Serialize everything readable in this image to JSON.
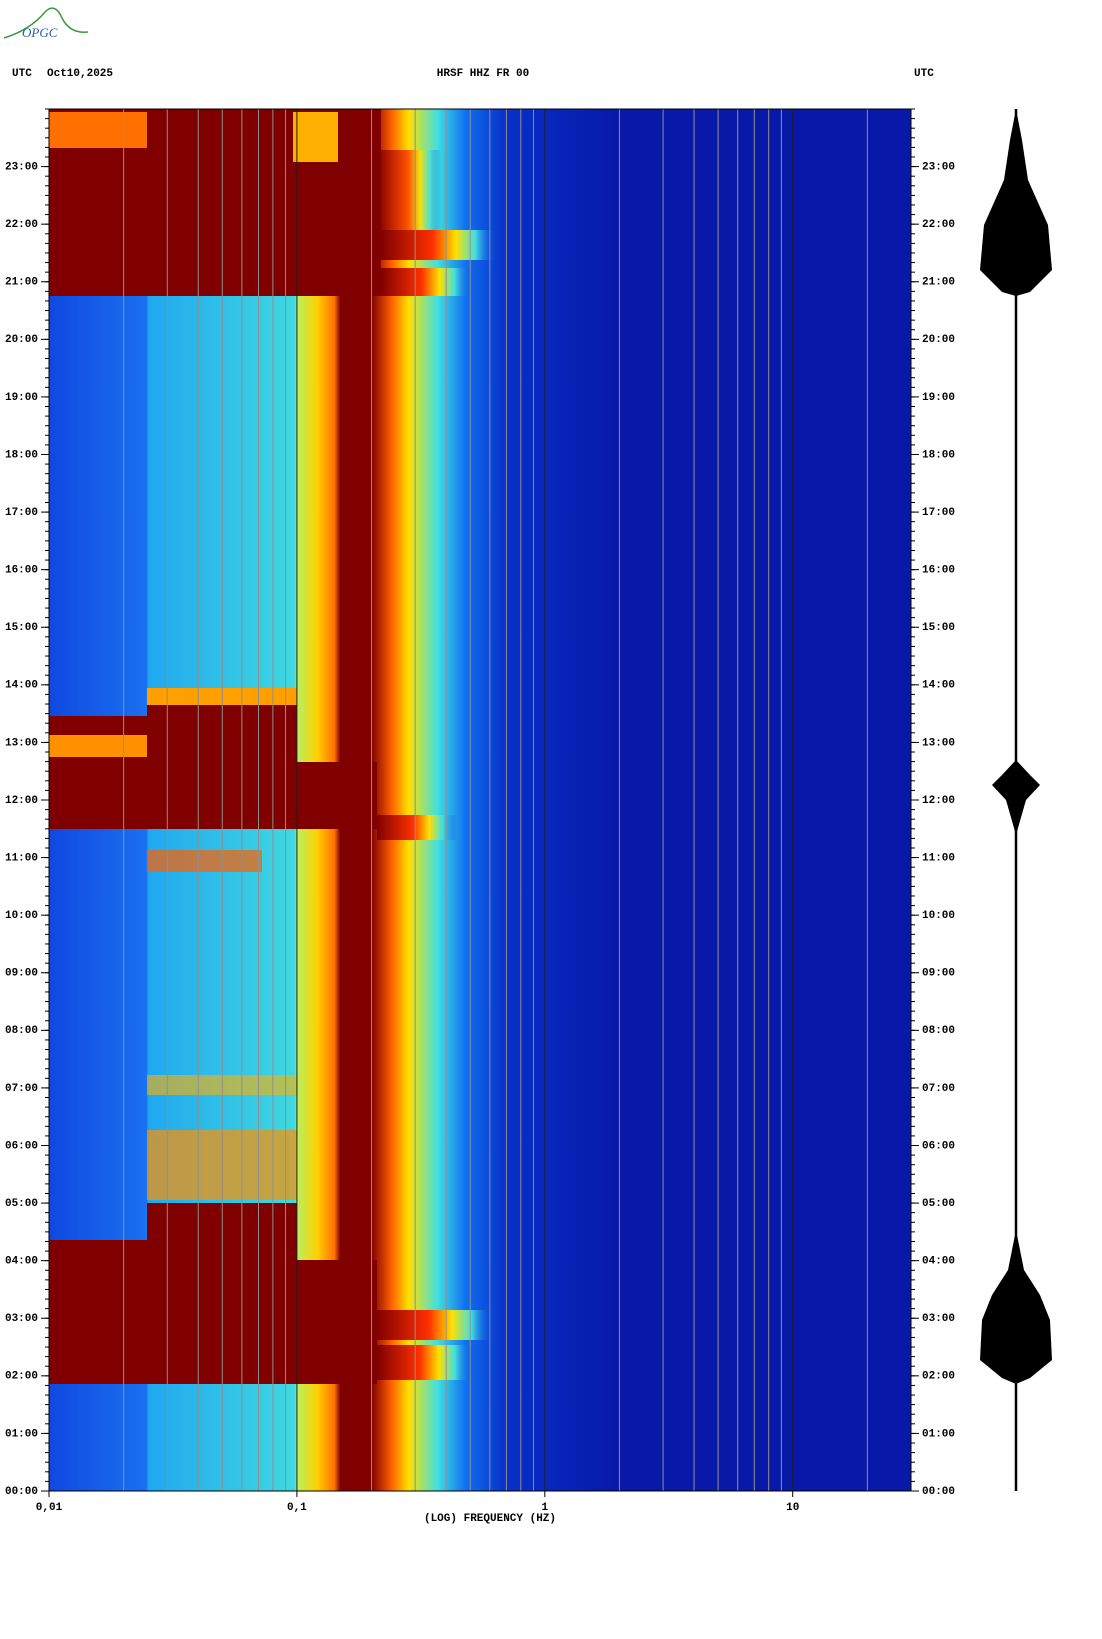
{
  "logo": "OPGC",
  "chart_data": {
    "type": "spectrogram",
    "title": "HRSF HHZ FR 00",
    "time_zone_left": "UTC",
    "date": "Oct10,2025",
    "time_zone_right": "UTC",
    "x_label": "(LOG) FREQUENCY (HZ)",
    "x_log": true,
    "xlim": [
      0.01,
      30
    ],
    "xticks": [
      {
        "value": 0.01,
        "label": "0,01"
      },
      {
        "value": 0.1,
        "label": "0,1"
      },
      1,
      10
    ],
    "xgrid": [
      0.02,
      0.03,
      0.04,
      0.05,
      0.06,
      0.07,
      0.08,
      0.09,
      0.2,
      0.3,
      0.4,
      0.5,
      0.6,
      0.7,
      0.8,
      0.9,
      2,
      3,
      4,
      5,
      6,
      7,
      8,
      9,
      20
    ],
    "ylim": [
      0,
      24
    ],
    "yticks": [
      {
        "value": 0,
        "label": "00:00"
      },
      {
        "value": 1,
        "label": "01:00"
      },
      {
        "value": 2,
        "label": "02:00"
      },
      {
        "value": 3,
        "label": "03:00"
      },
      {
        "value": 4,
        "label": "04:00"
      },
      {
        "value": 5,
        "label": "05:00"
      },
      {
        "value": 6,
        "label": "06:00"
      },
      {
        "value": 7,
        "label": "07:00"
      },
      {
        "value": 8,
        "label": "08:00"
      },
      {
        "value": 9,
        "label": "09:00"
      },
      {
        "value": 10,
        "label": "10:00"
      },
      {
        "value": 11,
        "label": "11:00"
      },
      {
        "value": 12,
        "label": "12:00"
      },
      {
        "value": 13,
        "label": "13:00"
      },
      {
        "value": 14,
        "label": "14:00"
      },
      {
        "value": 15,
        "label": "15:00"
      },
      {
        "value": 16,
        "label": "16:00"
      },
      {
        "value": 17,
        "label": "17:00"
      },
      {
        "value": 18,
        "label": "18:00"
      },
      {
        "value": 19,
        "label": "19:00"
      },
      {
        "value": 20,
        "label": "20:00"
      },
      {
        "value": 21,
        "label": "21:00"
      },
      {
        "value": 22,
        "label": "22:00"
      },
      {
        "value": 23,
        "label": "23:00"
      }
    ]
  }
}
